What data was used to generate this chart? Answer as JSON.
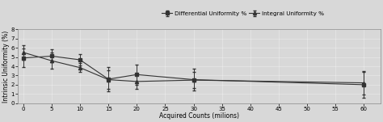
{
  "x": [
    0,
    5,
    10,
    15,
    20,
    30,
    60
  ],
  "differential_y": [
    4.9,
    5.1,
    4.7,
    2.6,
    3.1,
    2.55,
    2.0
  ],
  "integral_y": [
    5.5,
    4.6,
    3.85,
    2.55,
    2.35,
    2.5,
    2.2
  ],
  "differential_err": [
    1.0,
    0.7,
    0.6,
    1.3,
    1.1,
    1.2,
    1.4
  ],
  "integral_err": [
    0.8,
    0.9,
    0.5,
    1.0,
    0.8,
    0.9,
    1.3
  ],
  "xlabel": "Acquired Counts (milions)",
  "ylabel": "Intrinsic Uniformity (%)",
  "xticks": [
    0,
    5,
    10,
    15,
    20,
    25,
    30,
    35,
    40,
    45,
    50,
    55,
    60
  ],
  "yticks": [
    0,
    1,
    2,
    3,
    4,
    5,
    6,
    7,
    8
  ],
  "ylim": [
    0,
    8
  ],
  "xlim": [
    -1,
    63
  ],
  "legend_diff": "Differential Uniformity %",
  "legend_int": "Integral Uniformity %",
  "line_color": "#333333",
  "bg_color": "#d8d8d8",
  "marker_square": "s",
  "marker_triangle": "^",
  "marker_size": 3,
  "line_width": 0.8,
  "capsize": 1.5,
  "elinewidth": 0.7,
  "label_fontsize": 5.5,
  "tick_fontsize": 5,
  "legend_fontsize": 5.2
}
